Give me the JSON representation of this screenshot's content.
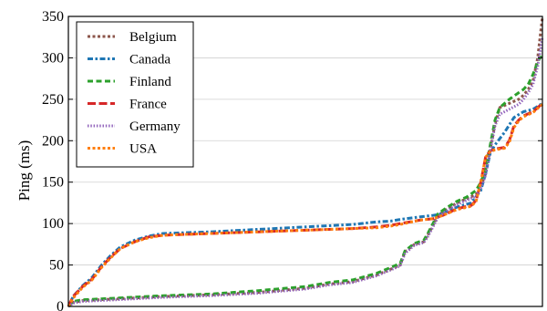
{
  "chart_data": {
    "type": "line",
    "ylabel": "Ping (ms)",
    "xlabel": "",
    "ylim": [
      0,
      350
    ],
    "xlim": [
      0,
      100
    ],
    "yticks": [
      0,
      50,
      100,
      150,
      200,
      250,
      300,
      350
    ],
    "yticks_labels": [
      "0",
      "50",
      "100",
      "150",
      "200",
      "250",
      "300",
      "350"
    ],
    "grid": "horizontal",
    "legend": "top-left",
    "series": [
      {
        "name": "Belgium",
        "color": "#8c564b",
        "dash": "dotted",
        "points": [
          [
            0,
            0
          ],
          [
            1,
            5
          ],
          [
            3,
            7
          ],
          [
            10,
            9
          ],
          [
            20,
            12
          ],
          [
            30,
            14
          ],
          [
            40,
            17
          ],
          [
            50,
            22
          ],
          [
            55,
            27
          ],
          [
            60,
            30
          ],
          [
            65,
            38
          ],
          [
            68,
            45
          ],
          [
            70,
            50
          ],
          [
            71,
            66
          ],
          [
            73,
            75
          ],
          [
            75,
            78
          ],
          [
            76,
            88
          ],
          [
            78,
            110
          ],
          [
            80,
            118
          ],
          [
            82,
            125
          ],
          [
            84,
            130
          ],
          [
            86,
            135
          ],
          [
            87,
            145
          ],
          [
            88,
            160
          ],
          [
            89,
            190
          ],
          [
            90,
            220
          ],
          [
            91,
            240
          ],
          [
            93,
            245
          ],
          [
            95,
            250
          ],
          [
            96,
            255
          ],
          [
            97,
            262
          ],
          [
            98,
            272
          ],
          [
            99,
            300
          ],
          [
            100,
            350
          ]
        ]
      },
      {
        "name": "Canada",
        "color": "#1f77b4",
        "dash": "dashdot",
        "points": [
          [
            0,
            0
          ],
          [
            1,
            12
          ],
          [
            3,
            25
          ],
          [
            5,
            35
          ],
          [
            7,
            50
          ],
          [
            9,
            62
          ],
          [
            11,
            72
          ],
          [
            14,
            80
          ],
          [
            17,
            85
          ],
          [
            20,
            88
          ],
          [
            30,
            90
          ],
          [
            40,
            93
          ],
          [
            50,
            96
          ],
          [
            60,
            99
          ],
          [
            65,
            102
          ],
          [
            68,
            103
          ],
          [
            70,
            105
          ],
          [
            74,
            108
          ],
          [
            77,
            110
          ],
          [
            79,
            112
          ],
          [
            82,
            120
          ],
          [
            85,
            125
          ],
          [
            87,
            140
          ],
          [
            88,
            160
          ],
          [
            89,
            185
          ],
          [
            90,
            195
          ],
          [
            92,
            210
          ],
          [
            94,
            228
          ],
          [
            96,
            235
          ],
          [
            98,
            238
          ],
          [
            100,
            245
          ]
        ]
      },
      {
        "name": "Finland",
        "color": "#2ca02c",
        "dash": "dashed",
        "points": [
          [
            0,
            0
          ],
          [
            1,
            6
          ],
          [
            3,
            8
          ],
          [
            10,
            10
          ],
          [
            20,
            13
          ],
          [
            30,
            15
          ],
          [
            40,
            19
          ],
          [
            50,
            24
          ],
          [
            55,
            29
          ],
          [
            60,
            32
          ],
          [
            65,
            40
          ],
          [
            68,
            47
          ],
          [
            70,
            52
          ],
          [
            71,
            67
          ],
          [
            73,
            76
          ],
          [
            75,
            80
          ],
          [
            76,
            90
          ],
          [
            78,
            112
          ],
          [
            80,
            120
          ],
          [
            82,
            127
          ],
          [
            84,
            132
          ],
          [
            86,
            140
          ],
          [
            87,
            150
          ],
          [
            88,
            165
          ],
          [
            89,
            195
          ],
          [
            90,
            225
          ],
          [
            91,
            240
          ],
          [
            93,
            250
          ],
          [
            95,
            258
          ],
          [
            96,
            262
          ],
          [
            97,
            268
          ],
          [
            98,
            280
          ],
          [
            99,
            295
          ],
          [
            100,
            305
          ]
        ]
      },
      {
        "name": "France",
        "color": "#d62728",
        "dash": "longdash",
        "points": [
          [
            0,
            0
          ],
          [
            1,
            12
          ],
          [
            3,
            24
          ],
          [
            5,
            33
          ],
          [
            7,
            48
          ],
          [
            9,
            60
          ],
          [
            11,
            70
          ],
          [
            14,
            78
          ],
          [
            17,
            84
          ],
          [
            20,
            86
          ],
          [
            30,
            88
          ],
          [
            40,
            90
          ],
          [
            50,
            92
          ],
          [
            60,
            94
          ],
          [
            65,
            96
          ],
          [
            68,
            98
          ],
          [
            70,
            100
          ],
          [
            74,
            104
          ],
          [
            77,
            106
          ],
          [
            79,
            110
          ],
          [
            82,
            118
          ],
          [
            85,
            122
          ],
          [
            86,
            128
          ],
          [
            87,
            150
          ],
          [
            88,
            180
          ],
          [
            89,
            188
          ],
          [
            90,
            190
          ],
          [
            92,
            192
          ],
          [
            93,
            200
          ],
          [
            94,
            218
          ],
          [
            95,
            225
          ],
          [
            96,
            230
          ],
          [
            98,
            235
          ],
          [
            100,
            245
          ]
        ]
      },
      {
        "name": "Germany",
        "color": "#9467bd",
        "dash": "finedot",
        "points": [
          [
            0,
            0
          ],
          [
            1,
            4
          ],
          [
            3,
            6
          ],
          [
            10,
            8
          ],
          [
            20,
            11
          ],
          [
            30,
            13
          ],
          [
            40,
            16
          ],
          [
            50,
            21
          ],
          [
            55,
            26
          ],
          [
            60,
            29
          ],
          [
            65,
            37
          ],
          [
            68,
            44
          ],
          [
            70,
            49
          ],
          [
            71,
            64
          ],
          [
            73,
            74
          ],
          [
            75,
            77
          ],
          [
            76,
            86
          ],
          [
            78,
            108
          ],
          [
            80,
            116
          ],
          [
            82,
            123
          ],
          [
            84,
            128
          ],
          [
            86,
            133
          ],
          [
            87,
            143
          ],
          [
            88,
            158
          ],
          [
            89,
            188
          ],
          [
            90,
            218
          ],
          [
            91,
            232
          ],
          [
            93,
            238
          ],
          [
            95,
            244
          ],
          [
            96,
            250
          ],
          [
            97,
            258
          ],
          [
            98,
            268
          ],
          [
            99,
            290
          ],
          [
            100,
            325
          ]
        ]
      },
      {
        "name": "USA",
        "color": "#ff7f0e",
        "dash": "dotted",
        "points": [
          [
            0,
            0
          ],
          [
            1,
            10
          ],
          [
            3,
            23
          ],
          [
            5,
            32
          ],
          [
            7,
            47
          ],
          [
            9,
            59
          ],
          [
            11,
            70
          ],
          [
            14,
            78
          ],
          [
            17,
            83
          ],
          [
            20,
            86
          ],
          [
            30,
            88
          ],
          [
            40,
            90
          ],
          [
            50,
            92
          ],
          [
            60,
            94
          ],
          [
            65,
            95
          ],
          [
            68,
            97
          ],
          [
            70,
            99
          ],
          [
            74,
            104
          ],
          [
            77,
            106
          ],
          [
            79,
            110
          ],
          [
            82,
            117
          ],
          [
            85,
            121
          ],
          [
            86,
            127
          ],
          [
            87,
            150
          ],
          [
            88,
            180
          ],
          [
            89,
            187
          ],
          [
            90,
            189
          ],
          [
            92,
            191
          ],
          [
            93,
            198
          ],
          [
            94,
            216
          ],
          [
            95,
            224
          ],
          [
            96,
            229
          ],
          [
            98,
            234
          ],
          [
            100,
            244
          ]
        ]
      }
    ]
  }
}
